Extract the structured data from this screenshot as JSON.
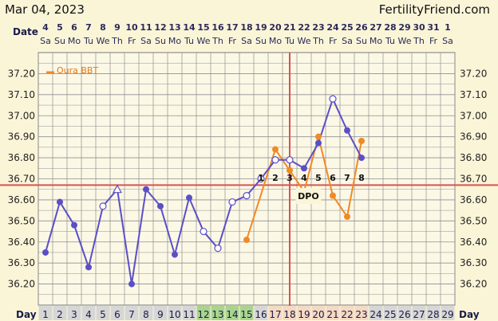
{
  "header": {
    "date": "Mar 04, 2023",
    "site": "FertilityFriend.com"
  },
  "labels": {
    "date_row": "Date",
    "day_row": "Day",
    "dpo": "DPO"
  },
  "colors": {
    "bbt_line": "#5b4fc8",
    "oura_line": "#f08a24",
    "coverline": "#d9534f",
    "grid": "#8f8f8f",
    "plot_bg": "#fcf8e6",
    "band_green": "#a8d58e",
    "band_orange": "#f5d9c2",
    "band_gray": "#d6d6d6"
  },
  "chart_data": {
    "type": "line",
    "title": "",
    "xlabel": "Day",
    "ylabel": "",
    "ylim": [
      36.1,
      37.3
    ],
    "yticks": [
      "36.20",
      "36.30",
      "36.40",
      "36.50",
      "36.60",
      "36.70",
      "36.80",
      "36.90",
      "37.00",
      "37.10",
      "37.20"
    ],
    "dates": [
      "4",
      "5",
      "6",
      "7",
      "8",
      "9",
      "10",
      "11",
      "12",
      "13",
      "14",
      "15",
      "16",
      "17",
      "18",
      "19",
      "20",
      "21",
      "22",
      "23",
      "24",
      "25",
      "26",
      "27",
      "28",
      "29",
      "30",
      "31",
      "1"
    ],
    "weekdays": [
      "Sa",
      "Su",
      "Mo",
      "Tu",
      "We",
      "Th",
      "Fr",
      "Sa",
      "Su",
      "Mo",
      "Tu",
      "We",
      "Th",
      "Fr",
      "Sa",
      "Su",
      "Mo",
      "Tu",
      "We",
      "Th",
      "Fr",
      "Sa",
      "Su",
      "Mo",
      "Tu",
      "We",
      "Th",
      "Fr",
      "Sa"
    ],
    "days": [
      "1",
      "2",
      "3",
      "4",
      "5",
      "6",
      "7",
      "8",
      "9",
      "10",
      "11",
      "12",
      "13",
      "14",
      "15",
      "16",
      "17",
      "18",
      "19",
      "20",
      "21",
      "22",
      "23",
      "24",
      "25",
      "26",
      "27",
      "28",
      "29"
    ],
    "day_band_types": [
      "gray",
      "gray",
      "gray",
      "gray",
      "gray",
      "gray",
      "gray",
      "gray",
      "gray",
      "gray",
      "gray",
      "green",
      "green",
      "green",
      "green",
      "gray",
      "orange",
      "orange",
      "orange",
      "orange",
      "orange",
      "orange",
      "orange",
      "gray",
      "gray",
      "gray",
      "gray",
      "gray",
      "gray"
    ],
    "coverline": 36.67,
    "ovulation_day": 18,
    "series": [
      {
        "name": "BBT",
        "points": [
          {
            "day": 1,
            "value": 36.35,
            "marker": "filled"
          },
          {
            "day": 2,
            "value": 36.59,
            "marker": "filled"
          },
          {
            "day": 3,
            "value": 36.48,
            "marker": "filled"
          },
          {
            "day": 4,
            "value": 36.28,
            "marker": "filled"
          },
          {
            "day": 5,
            "value": 36.57,
            "marker": "open"
          },
          {
            "day": 6,
            "value": 36.65,
            "marker": "triangle"
          },
          {
            "day": 7,
            "value": 36.2,
            "marker": "filled"
          },
          {
            "day": 8,
            "value": 36.65,
            "marker": "filled"
          },
          {
            "day": 9,
            "value": 36.57,
            "marker": "filled"
          },
          {
            "day": 10,
            "value": 36.34,
            "marker": "filled"
          },
          {
            "day": 11,
            "value": 36.61,
            "marker": "filled"
          },
          {
            "day": 12,
            "value": 36.45,
            "marker": "open"
          },
          {
            "day": 13,
            "value": 36.37,
            "marker": "open"
          },
          {
            "day": 14,
            "value": 36.59,
            "marker": "open"
          },
          {
            "day": 15,
            "value": 36.62,
            "marker": "open"
          },
          {
            "day": 16,
            "value": 36.7,
            "marker": "open"
          },
          {
            "day": 17,
            "value": 36.79,
            "marker": "open"
          },
          {
            "day": 18,
            "value": 36.79,
            "marker": "open"
          },
          {
            "day": 19,
            "value": 36.75,
            "marker": "filled"
          },
          {
            "day": 20,
            "value": 36.87,
            "marker": "filled"
          },
          {
            "day": 21,
            "value": 37.08,
            "marker": "open"
          },
          {
            "day": 22,
            "value": 36.93,
            "marker": "filled"
          },
          {
            "day": 23,
            "value": 36.8,
            "marker": "filled"
          }
        ]
      },
      {
        "name": "Oura BBT",
        "points": [
          {
            "day": 15,
            "value": 36.41
          },
          {
            "day": 17,
            "value": 36.84
          },
          {
            "day": 18,
            "value": 36.74
          },
          {
            "day": 19,
            "value": 36.64
          },
          {
            "day": 20,
            "value": 36.9
          },
          {
            "day": 21,
            "value": 36.62
          },
          {
            "day": 22,
            "value": 36.52
          },
          {
            "day": 23,
            "value": 36.88
          }
        ]
      }
    ],
    "dpo_labels": [
      {
        "day": 16,
        "text": "1"
      },
      {
        "day": 17,
        "text": "2"
      },
      {
        "day": 18,
        "text": "3"
      },
      {
        "day": 19,
        "text": "4"
      },
      {
        "day": 20,
        "text": "5"
      },
      {
        "day": 21,
        "text": "6"
      },
      {
        "day": 22,
        "text": "7"
      },
      {
        "day": 23,
        "text": "8"
      }
    ],
    "legend": {
      "label": "Oura BBT",
      "position": "top-left"
    }
  }
}
